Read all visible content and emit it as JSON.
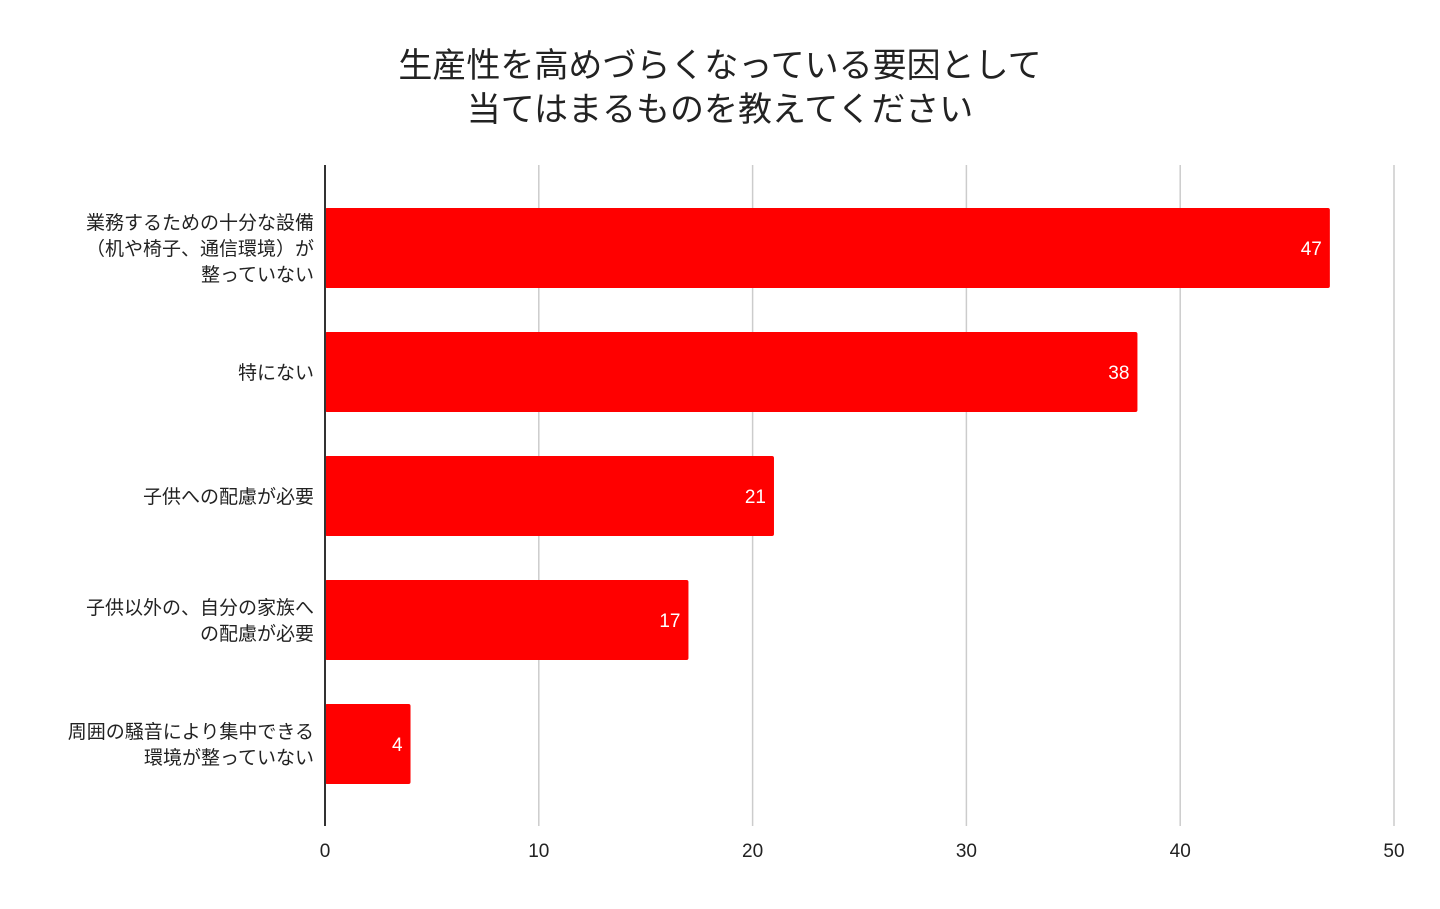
{
  "chart_data": {
    "type": "bar",
    "orientation": "horizontal",
    "title": [
      "生産性を高めづらくなっている要因として",
      "当てはまるものを教えてください"
    ],
    "categories": [
      [
        "業務するための十分な設備",
        "（机や椅子、通信環境）が",
        "整っていない"
      ],
      [
        "特にない"
      ],
      [
        "子供への配慮が必要"
      ],
      [
        "子供以外の、自分の家族へ",
        "の配慮が必要"
      ],
      [
        "周囲の騒音により集中できる",
        "環境が整っていない"
      ]
    ],
    "values": [
      47,
      38,
      21,
      17,
      4
    ],
    "xlim": [
      0,
      50
    ],
    "xticks": [
      0,
      10,
      20,
      30,
      40,
      50
    ],
    "xlabel": "",
    "ylabel": "",
    "grid": "vertical",
    "legend": "none",
    "bar_color": "#ff0000",
    "grid_color": "#cccccc",
    "axis_color": "#333333"
  }
}
